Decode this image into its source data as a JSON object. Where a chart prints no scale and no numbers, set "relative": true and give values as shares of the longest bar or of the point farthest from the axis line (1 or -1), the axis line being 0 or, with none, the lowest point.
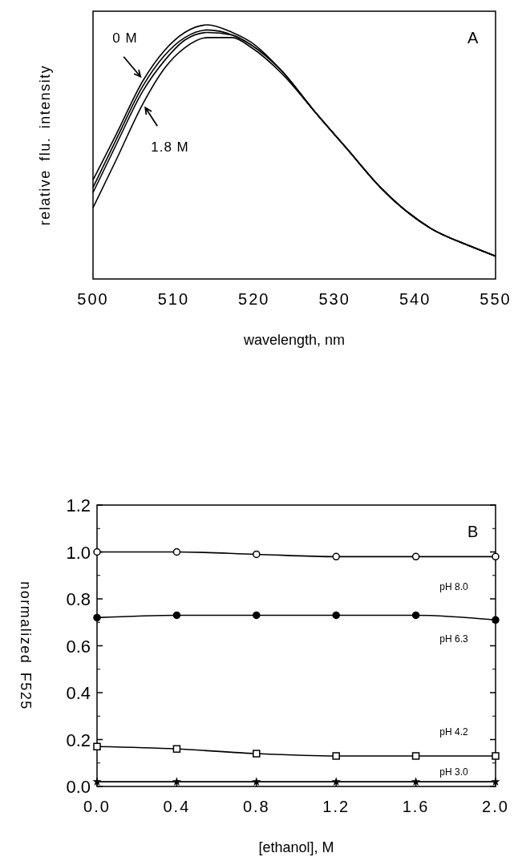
{
  "chart_data": [
    {
      "type": "line",
      "title": "A",
      "xlabel": "wavelength, nm",
      "ylabel": "relative flu. intensity",
      "relative": true,
      "xlim": [
        500,
        550
      ],
      "xticks": [
        500,
        510,
        520,
        530,
        540,
        550
      ],
      "tick_labels": "x",
      "line_style": "solid",
      "series": [
        {
          "name": "0 M",
          "color": "#000000",
          "x": [
            500,
            502.9,
            506.2,
            508.9,
            511.4,
            514.2,
            517.3,
            519.7,
            523.4,
            527.5,
            531.6,
            535.7,
            541.9,
            546.8,
            550
          ],
          "values": [
            0.39,
            0.57,
            0.78,
            0.9,
            0.97,
            1,
            0.97,
            0.93,
            0.82,
            0.66,
            0.51,
            0.36,
            0.2,
            0.13,
            0.09
          ]
        },
        {
          "color": "#000000",
          "x": [
            500,
            502.9,
            506.2,
            508.9,
            511.4,
            514.2,
            517.3,
            519.7,
            523.4,
            527.5,
            531.6,
            535.7,
            541.9,
            546.8,
            550
          ],
          "values": [
            0.36,
            0.55,
            0.76,
            0.88,
            0.95,
            0.98,
            0.96,
            0.92,
            0.82,
            0.66,
            0.51,
            0.36,
            0.2,
            0.13,
            0.09
          ]
        },
        {
          "color": "#000000",
          "x": [
            500,
            502.9,
            506.2,
            508.9,
            511.4,
            514.2,
            517.3,
            519.7,
            523.4,
            527.5,
            531.6,
            535.7,
            541.9,
            546.8,
            550
          ],
          "values": [
            0.34,
            0.53,
            0.74,
            0.86,
            0.94,
            0.97,
            0.96,
            0.92,
            0.82,
            0.66,
            0.51,
            0.36,
            0.2,
            0.13,
            0.09
          ]
        },
        {
          "name": "1.8 M",
          "color": "#000000",
          "x": [
            500,
            502.9,
            506.2,
            508.9,
            511.4,
            514.2,
            517.3,
            519.7,
            523.4,
            527.5,
            531.6,
            535.7,
            541.9,
            546.8,
            550
          ],
          "values": [
            0.28,
            0.47,
            0.69,
            0.83,
            0.91,
            0.95,
            0.95,
            0.91,
            0.81,
            0.66,
            0.51,
            0.36,
            0.2,
            0.13,
            0.09
          ]
        }
      ]
    },
    {
      "type": "line",
      "title": "B",
      "xlabel": "[ethanol],  M",
      "ylabel": "normalized F525",
      "xlim": [
        0,
        2
      ],
      "xticks": [
        {
          "value": 0,
          "label": "0.0"
        },
        0.4,
        0.8,
        1.2,
        1.6,
        {
          "value": 2,
          "label": "2.0"
        }
      ],
      "ylim": [
        0,
        1.2
      ],
      "yticks": [
        {
          "value": 0,
          "label": "0.0"
        },
        0.2,
        0.4,
        0.6,
        0.8,
        {
          "value": 1,
          "label": "1.0"
        },
        1.2
      ],
      "line_style": "solid",
      "x": [
        0,
        0.4,
        0.8,
        1.2,
        1.6,
        2
      ],
      "series": [
        {
          "name": "pH 8.0",
          "color": "#000000",
          "marker": "circle",
          "values": [
            1.0,
            1.0,
            0.99,
            0.98,
            0.98,
            0.98
          ]
        },
        {
          "name": "pH 6.3",
          "color": "#000000",
          "marker": "circle",
          "values": [
            0.72,
            0.73,
            0.73,
            0.73,
            0.73,
            0.71
          ]
        },
        {
          "name": "pH 4.2",
          "color": "#000000",
          "marker": "square",
          "values": [
            0.17,
            0.16,
            0.14,
            0.13,
            0.13,
            0.13
          ]
        },
        {
          "name": "pH 3.0",
          "color": "#000000",
          "marker": "star",
          "values": [
            0.02,
            0.02,
            0.02,
            0.02,
            0.02,
            0.02
          ]
        }
      ]
    }
  ]
}
